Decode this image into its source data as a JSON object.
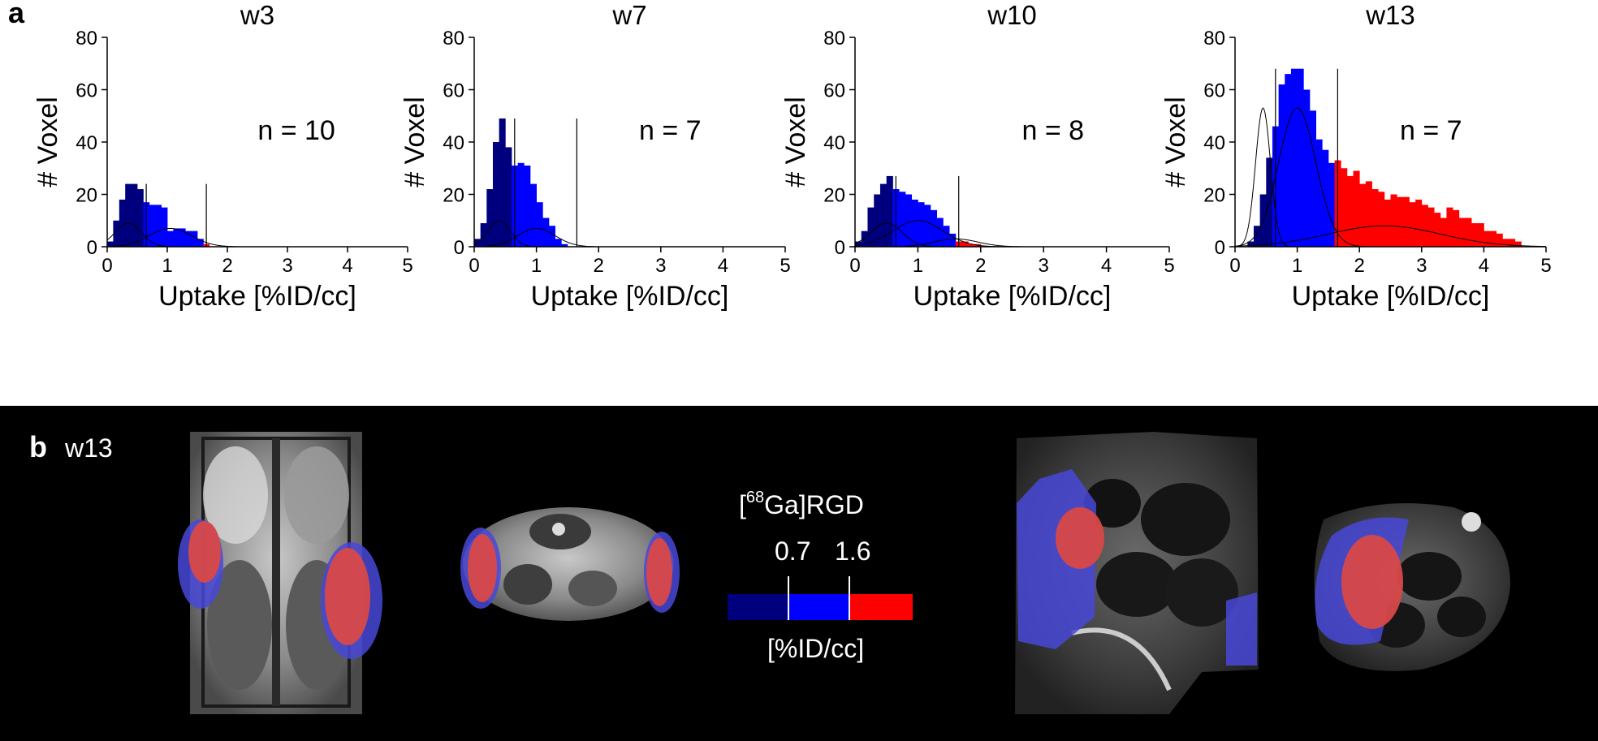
{
  "panel_a": {
    "label": "a"
  },
  "panel_b": {
    "label": "b",
    "week": "w13"
  },
  "colors": {
    "dark_blue": "#00007f",
    "blue": "#0000ff",
    "red": "#ff0000",
    "background": "#000000"
  },
  "colorbar": {
    "title_prefix": "[",
    "title_sup": "68",
    "title_suffix": "Ga]RGD",
    "thresholds": [
      "0.7",
      "1.6"
    ],
    "unit": "[%ID/cc]"
  },
  "chart_data": [
    {
      "type": "bar",
      "title": "w3",
      "xlabel": "Uptake [%ID/cc]",
      "ylabel": "# Voxel",
      "xlim": [
        0,
        5
      ],
      "ylim": [
        0,
        80
      ],
      "xticks": [
        "0",
        "1",
        "2",
        "3",
        "4",
        "5"
      ],
      "yticks": [
        "0",
        "20",
        "40",
        "60",
        "80"
      ],
      "annotation": "n = 10",
      "thresholds": [
        0.65,
        1.65
      ],
      "bin_width": 0.1,
      "bins": [
        [
          0.0,
          2
        ],
        [
          0.1,
          10
        ],
        [
          0.2,
          18
        ],
        [
          0.3,
          24
        ],
        [
          0.4,
          24
        ],
        [
          0.5,
          22
        ],
        [
          0.6,
          17
        ],
        [
          0.7,
          16
        ],
        [
          0.8,
          16
        ],
        [
          0.9,
          15
        ],
        [
          1.0,
          6
        ],
        [
          1.1,
          7
        ],
        [
          1.2,
          7
        ],
        [
          1.3,
          6
        ],
        [
          1.4,
          6
        ],
        [
          1.5,
          3
        ],
        [
          1.6,
          1
        ]
      ],
      "fit_curves": [
        {
          "mu": 0.35,
          "sigma": 0.22,
          "peak": 9
        },
        {
          "mu": 1.05,
          "sigma": 0.35,
          "peak": 7
        }
      ]
    },
    {
      "type": "bar",
      "title": "w7",
      "xlabel": "Uptake [%ID/cc]",
      "ylabel": "# Voxel",
      "xlim": [
        0,
        5
      ],
      "ylim": [
        0,
        80
      ],
      "xticks": [
        "0",
        "1",
        "2",
        "3",
        "4",
        "5"
      ],
      "yticks": [
        "0",
        "20",
        "40",
        "60",
        "80"
      ],
      "annotation": "n = 7",
      "thresholds": [
        0.65,
        1.65
      ],
      "bin_width": 0.1,
      "bins": [
        [
          0.0,
          3
        ],
        [
          0.1,
          9
        ],
        [
          0.2,
          22
        ],
        [
          0.3,
          40
        ],
        [
          0.4,
          49
        ],
        [
          0.5,
          38
        ],
        [
          0.6,
          31
        ],
        [
          0.7,
          32
        ],
        [
          0.8,
          31
        ],
        [
          0.9,
          24
        ],
        [
          1.0,
          17
        ],
        [
          1.1,
          11
        ],
        [
          1.2,
          8
        ],
        [
          1.3,
          3
        ],
        [
          1.4,
          1
        ]
      ],
      "fit_curves": [
        {
          "mu": 0.4,
          "sigma": 0.18,
          "peak": 10
        },
        {
          "mu": 1.0,
          "sigma": 0.3,
          "peak": 7
        }
      ]
    },
    {
      "type": "bar",
      "title": "w10",
      "xlabel": "Uptake [%ID/cc]",
      "ylabel": "# Voxel",
      "xlim": [
        0,
        5
      ],
      "ylim": [
        0,
        80
      ],
      "xticks": [
        "0",
        "1",
        "2",
        "3",
        "4",
        "5"
      ],
      "yticks": [
        "0",
        "20",
        "40",
        "60",
        "80"
      ],
      "annotation": "n = 8",
      "thresholds": [
        0.65,
        1.65
      ],
      "bin_width": 0.1,
      "bins": [
        [
          0.0,
          2
        ],
        [
          0.1,
          6
        ],
        [
          0.2,
          15
        ],
        [
          0.3,
          20
        ],
        [
          0.4,
          24
        ],
        [
          0.5,
          27
        ],
        [
          0.6,
          22
        ],
        [
          0.7,
          21
        ],
        [
          0.8,
          20
        ],
        [
          0.9,
          18
        ],
        [
          1.0,
          17
        ],
        [
          1.1,
          16
        ],
        [
          1.2,
          14
        ],
        [
          1.3,
          11
        ],
        [
          1.4,
          8
        ],
        [
          1.5,
          5
        ],
        [
          1.6,
          2
        ],
        [
          1.7,
          2
        ],
        [
          1.8,
          1
        ],
        [
          1.9,
          1
        ]
      ],
      "fit_curves": [
        {
          "mu": 0.5,
          "sigma": 0.25,
          "peak": 9
        },
        {
          "mu": 1.0,
          "sigma": 0.4,
          "peak": 10
        },
        {
          "mu": 1.6,
          "sigma": 0.35,
          "peak": 3
        }
      ]
    },
    {
      "type": "bar",
      "title": "w13",
      "xlabel": "Uptake [%ID/cc]",
      "ylabel": "# Voxel",
      "xlim": [
        0,
        5
      ],
      "ylim": [
        0,
        80
      ],
      "xticks": [
        "0",
        "1",
        "2",
        "3",
        "4",
        "5"
      ],
      "yticks": [
        "0",
        "20",
        "40",
        "60",
        "80"
      ],
      "annotation": "n = 7",
      "thresholds": [
        0.65,
        1.65
      ],
      "bin_width": 0.1,
      "bins": [
        [
          0.2,
          2
        ],
        [
          0.3,
          8
        ],
        [
          0.4,
          20
        ],
        [
          0.5,
          34
        ],
        [
          0.6,
          46
        ],
        [
          0.7,
          62
        ],
        [
          0.8,
          66
        ],
        [
          0.9,
          68
        ],
        [
          1.0,
          68
        ],
        [
          1.1,
          60
        ],
        [
          1.2,
          52
        ],
        [
          1.3,
          41
        ],
        [
          1.4,
          37
        ],
        [
          1.5,
          32
        ],
        [
          1.6,
          33
        ],
        [
          1.7,
          30
        ],
        [
          1.8,
          27
        ],
        [
          1.9,
          29
        ],
        [
          2.0,
          24
        ],
        [
          2.1,
          25
        ],
        [
          2.2,
          22
        ],
        [
          2.3,
          21
        ],
        [
          2.4,
          18
        ],
        [
          2.5,
          20
        ],
        [
          2.6,
          19
        ],
        [
          2.7,
          19
        ],
        [
          2.8,
          17
        ],
        [
          2.9,
          18
        ],
        [
          3.0,
          16
        ],
        [
          3.1,
          15
        ],
        [
          3.2,
          13
        ],
        [
          3.3,
          11
        ],
        [
          3.4,
          15
        ],
        [
          3.5,
          14
        ],
        [
          3.6,
          11
        ],
        [
          3.7,
          11
        ],
        [
          3.8,
          9
        ],
        [
          3.9,
          9
        ],
        [
          4.0,
          6
        ],
        [
          4.1,
          6
        ],
        [
          4.2,
          5
        ],
        [
          4.3,
          3
        ],
        [
          4.4,
          3
        ],
        [
          4.5,
          2
        ]
      ],
      "fit_curves": [
        {
          "mu": 0.45,
          "sigma": 0.12,
          "peak": 53
        },
        {
          "mu": 1.0,
          "sigma": 0.3,
          "peak": 53
        },
        {
          "mu": 2.4,
          "sigma": 0.9,
          "peak": 8
        }
      ]
    }
  ]
}
